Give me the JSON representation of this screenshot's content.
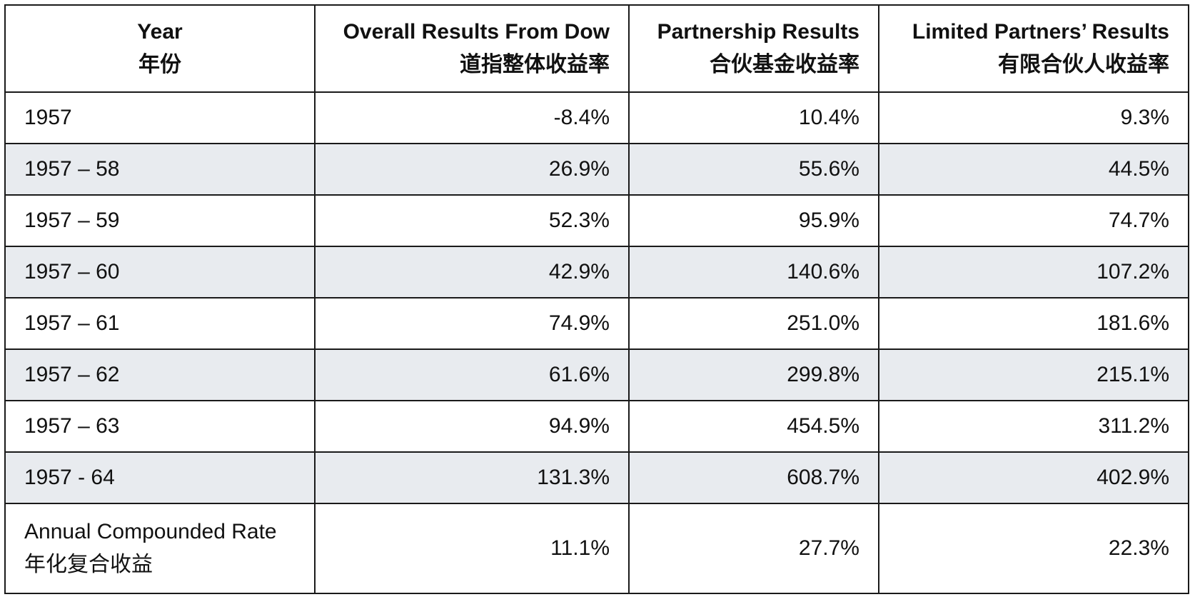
{
  "table": {
    "headers": [
      {
        "line1": "Year",
        "line2": "年份"
      },
      {
        "line1": "Overall Results From Dow",
        "line2": "道指整体收益率"
      },
      {
        "line1": "Partnership Results",
        "line2": "合伙基金收益率"
      },
      {
        "line1": "Limited Partners’ Results",
        "line2": "有限合伙人收益率"
      }
    ],
    "rows": [
      [
        "1957",
        "-8.4%",
        "10.4%",
        "9.3%"
      ],
      [
        "1957 – 58",
        "26.9%",
        "55.6%",
        "44.5%"
      ],
      [
        "1957 – 59",
        "52.3%",
        "95.9%",
        "74.7%"
      ],
      [
        "1957 – 60",
        "42.9%",
        "140.6%",
        "107.2%"
      ],
      [
        "1957 – 61",
        "74.9%",
        "251.0%",
        "181.6%"
      ],
      [
        "1957 – 62",
        "61.6%",
        "299.8%",
        "215.1%"
      ],
      [
        "1957 – 63",
        "94.9%",
        "454.5%",
        "311.2%"
      ],
      [
        "1957 - 64",
        "131.3%",
        "608.7%",
        "402.9%"
      ]
    ],
    "summary": {
      "label_line1": "Annual Compounded Rate",
      "label_line2": "年化复合收益",
      "values": [
        "11.1%",
        "27.7%",
        "22.3%"
      ]
    }
  }
}
